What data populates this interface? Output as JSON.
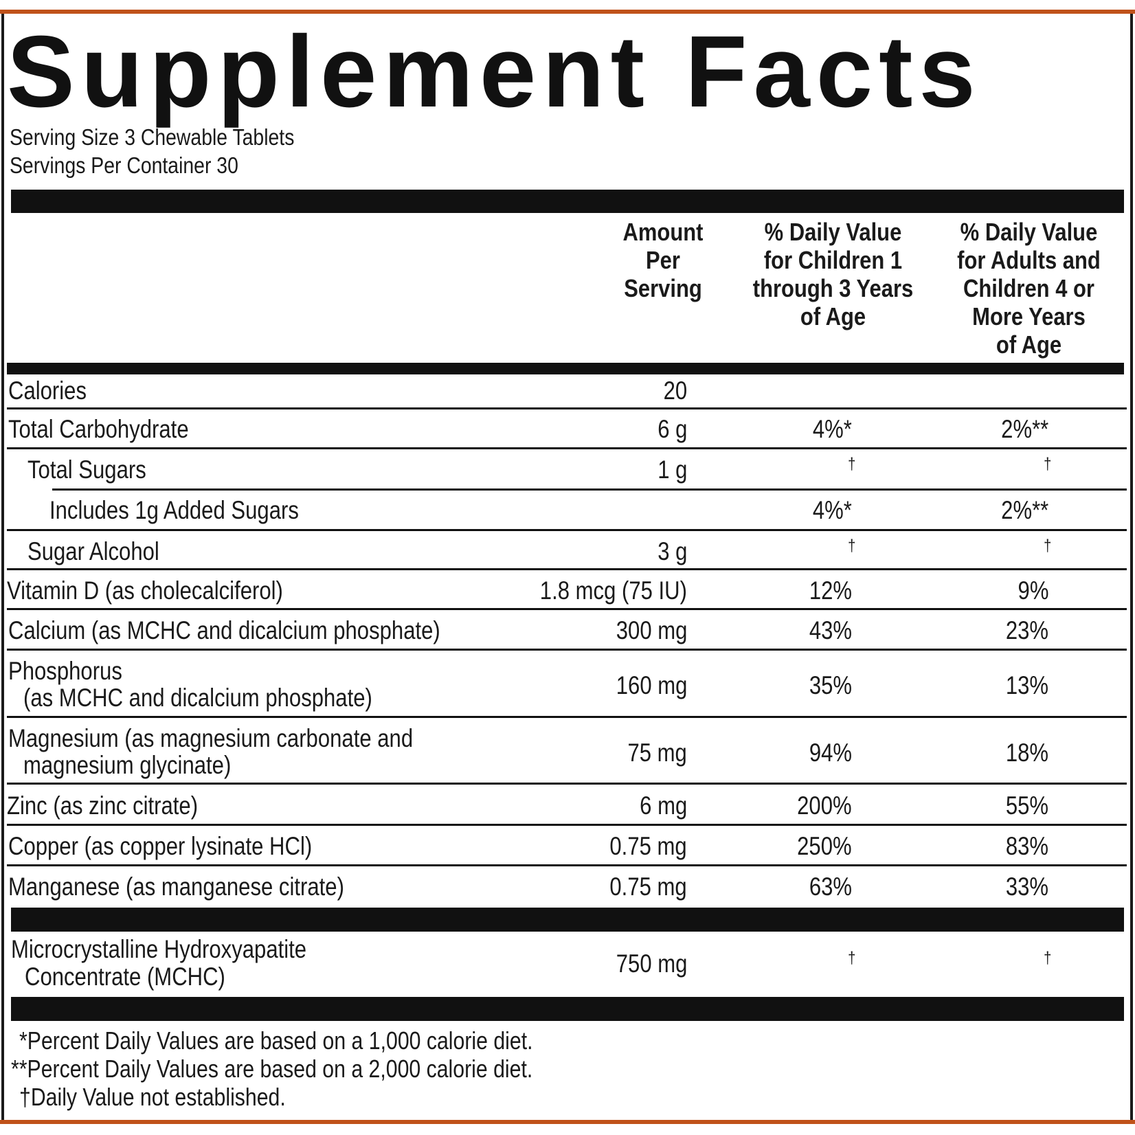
{
  "title": "Supplement Facts",
  "serving_size": "Serving Size 3 Chewable Tablets",
  "servings_per_container": "Servings Per Container 30",
  "columns": {
    "amount": [
      "Amount",
      "Per",
      "Serving"
    ],
    "dv_children": [
      "% Daily Value",
      "for Children 1",
      "through 3 Years",
      "of Age"
    ],
    "dv_adults": [
      "% Daily Value",
      "for Adults and",
      "Children 4 or",
      "More Years",
      "of Age"
    ]
  },
  "rows": [
    {
      "name": "Calories",
      "amount": "20",
      "dv_children": "",
      "dv_adults": ""
    },
    {
      "name": "Total Carbohydrate",
      "amount": "6 g",
      "dv_children": "4%*",
      "dv_adults": "2%**"
    },
    {
      "name": "Total Sugars",
      "amount": "1 g",
      "dv_children": "†",
      "dv_adults": "†"
    },
    {
      "name": "Includes 1g Added Sugars",
      "amount": "",
      "dv_children": "4%*",
      "dv_adults": "2%**"
    },
    {
      "name": "Sugar Alcohol",
      "amount": "3 g",
      "dv_children": "†",
      "dv_adults": "†"
    },
    {
      "name": "Vitamin D (as cholecalciferol)",
      "amount": "1.8 mcg (75 IU)",
      "dv_children": "12%",
      "dv_adults": "9%"
    },
    {
      "name": "Calcium (as MCHC and dicalcium phosphate)",
      "amount": "300 mg",
      "dv_children": "43%",
      "dv_adults": "23%"
    },
    {
      "name": "Phosphorus",
      "name2": "(as MCHC and dicalcium phosphate)",
      "amount": "160 mg",
      "dv_children": "35%",
      "dv_adults": "13%"
    },
    {
      "name": "Magnesium (as magnesium carbonate and",
      "name2": "magnesium glycinate)",
      "amount": "75 mg",
      "dv_children": "94%",
      "dv_adults": "18%"
    },
    {
      "name": "Zinc (as zinc citrate)",
      "amount": "6 mg",
      "dv_children": "200%",
      "dv_adults": "55%"
    },
    {
      "name": "Copper (as copper lysinate HCl)",
      "amount": "0.75 mg",
      "dv_children": "250%",
      "dv_adults": "83%"
    },
    {
      "name": "Manganese (as manganese citrate)",
      "amount": "0.75 mg",
      "dv_children": "63%",
      "dv_adults": "33%"
    },
    {
      "name": "Microcrystalline Hydroxyapatite",
      "name2": "Concentrate (MCHC)",
      "amount": "750 mg",
      "dv_children": "†",
      "dv_adults": "†"
    }
  ],
  "footnotes": [
    "*Percent Daily Values are based on a 1,000 calorie diet.",
    "**Percent Daily Values are based on a 2,000 calorie diet.",
    "†Daily Value not established."
  ]
}
